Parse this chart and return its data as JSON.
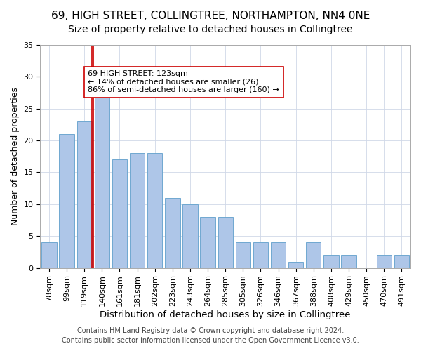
{
  "title": "69, HIGH STREET, COLLINGTREE, NORTHAMPTON, NN4 0NE",
  "subtitle": "Size of property relative to detached houses in Collingtree",
  "xlabel": "Distribution of detached houses by size in Collingtree",
  "ylabel": "Number of detached properties",
  "bar_labels": [
    "78sqm",
    "99sqm",
    "119sqm",
    "140sqm",
    "161sqm",
    "181sqm",
    "202sqm",
    "223sqm",
    "243sqm",
    "264sqm",
    "285sqm",
    "305sqm",
    "326sqm",
    "346sqm",
    "367sqm",
    "388sqm",
    "408sqm",
    "429sqm",
    "450sqm",
    "470sqm",
    "491sqm"
  ],
  "bar_heights": [
    4,
    21,
    23,
    27,
    17,
    18,
    18,
    11,
    10,
    8,
    8,
    4,
    4,
    4,
    1,
    4,
    2,
    2,
    0,
    2,
    2
  ],
  "bar_color": "#aec6e8",
  "bar_edge_color": "#6fa8d0",
  "vline_x_index": 2,
  "vline_color": "#cc0000",
  "annotation_text": "69 HIGH STREET: 123sqm\n← 14% of detached houses are smaller (26)\n86% of semi-detached houses are larger (160) →",
  "annotation_box_color": "#ffffff",
  "annotation_box_edge": "#cc0000",
  "ylim": [
    0,
    35
  ],
  "yticks": [
    0,
    5,
    10,
    15,
    20,
    25,
    30,
    35
  ],
  "footer_line1": "Contains HM Land Registry data © Crown copyright and database right 2024.",
  "footer_line2": "Contains public sector information licensed under the Open Government Licence v3.0.",
  "title_fontsize": 11,
  "subtitle_fontsize": 10,
  "xlabel_fontsize": 9.5,
  "ylabel_fontsize": 9,
  "tick_fontsize": 8,
  "footer_fontsize": 7
}
